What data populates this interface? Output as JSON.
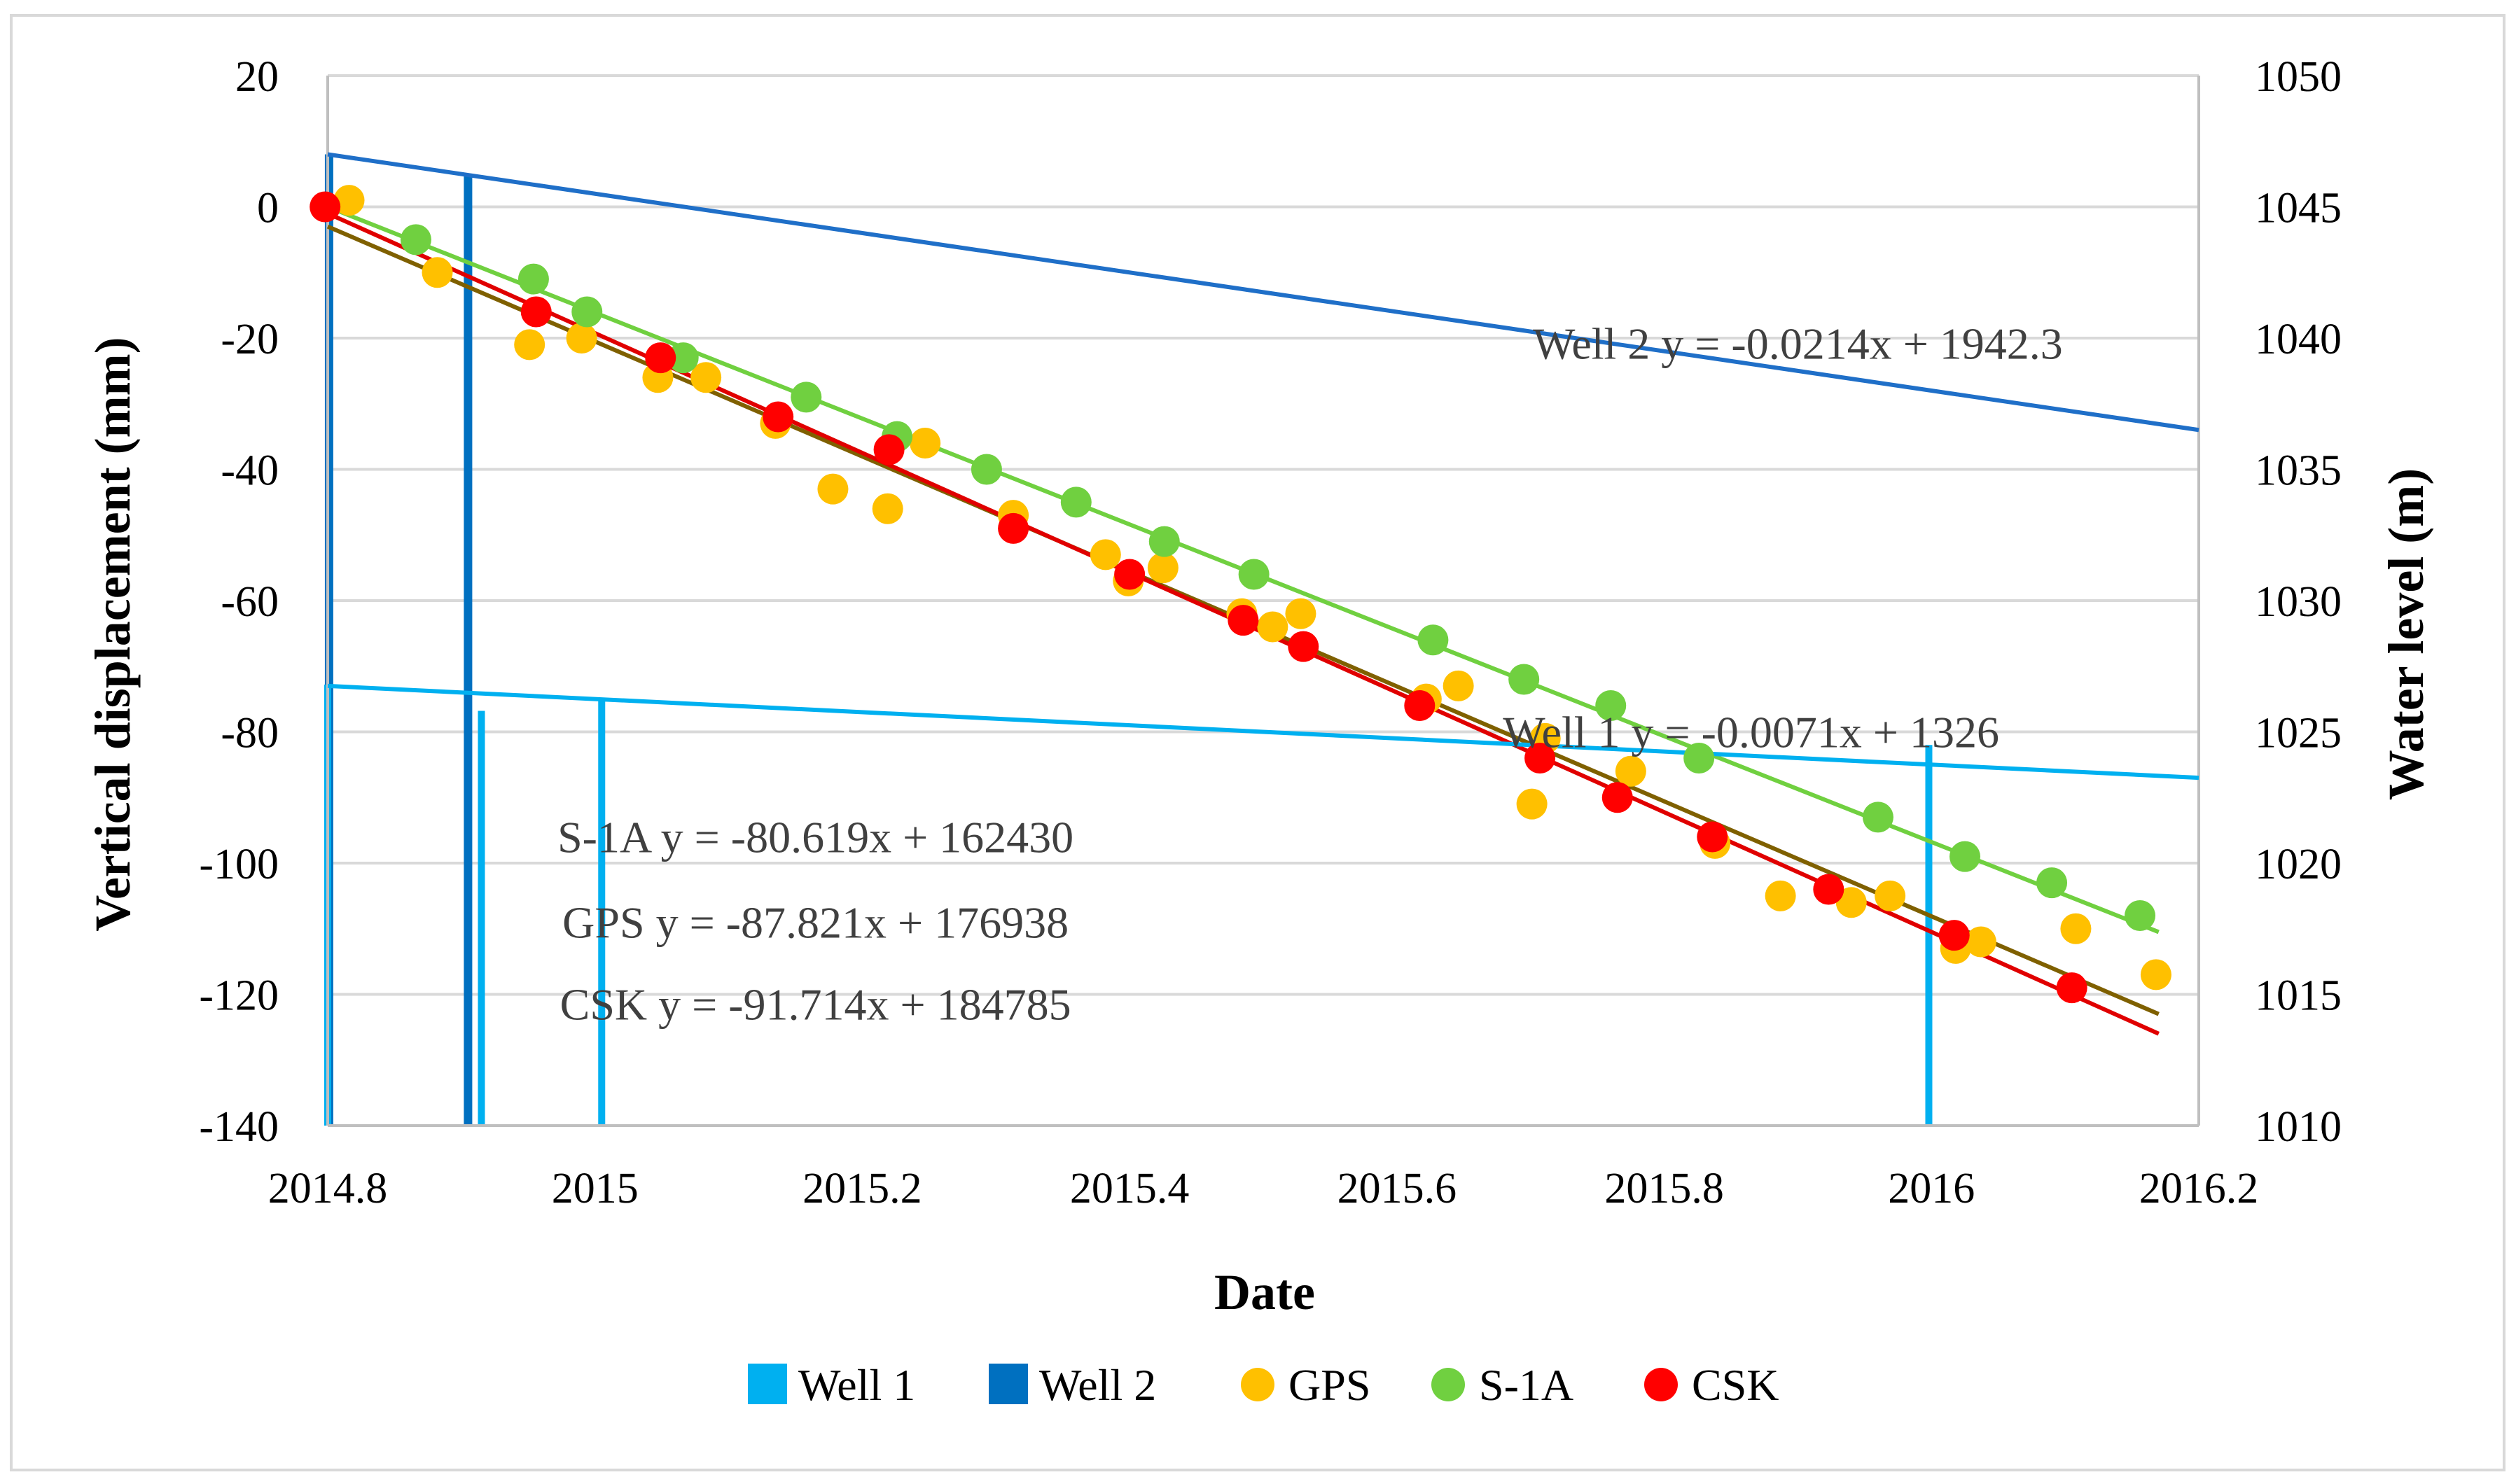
{
  "chart_data": {
    "type": "scatter",
    "title": "",
    "xlabel": "Date",
    "ylabel_left": "Vertical displacement (mm)",
    "ylabel_right": "Water level (m)",
    "xlim": [
      2014.8,
      2016.2
    ],
    "ylim_left": [
      -140,
      20
    ],
    "ylim_right": [
      1010,
      1050
    ],
    "x_ticks": [
      2014.8,
      2015.0,
      2015.2,
      2015.4,
      2015.6,
      2015.8,
      2016.0,
      2016.2
    ],
    "x_tick_labels": [
      "2014.8",
      "2015",
      "2015.2",
      "2015.4",
      "2015.6",
      "2015.8",
      "2016",
      "2016.2"
    ],
    "y_left_ticks": [
      20,
      0,
      -20,
      -40,
      -60,
      -80,
      -100,
      -120,
      -140
    ],
    "y_left_tick_labels": [
      "20",
      "0",
      "-20",
      "-40",
      "-60",
      "-80",
      "-100",
      "-120",
      "-140"
    ],
    "y_right_ticks": [
      1050,
      1045,
      1040,
      1035,
      1030,
      1025,
      1020,
      1015,
      1010
    ],
    "y_right_tick_labels": [
      "1050",
      "1045",
      "1040",
      "1035",
      "1030",
      "1025",
      "1020",
      "1015",
      "1010"
    ],
    "gridlines": true,
    "legend": {
      "position": "bottom",
      "entries": [
        {
          "label": "Well 1",
          "marker": "bar",
          "color": "#00B0F0"
        },
        {
          "label": "Well 2",
          "marker": "bar",
          "color": "#0070C0"
        },
        {
          "label": "GPS",
          "marker": "circle",
          "color": "#FFC000"
        },
        {
          "label": "S-1A",
          "marker": "circle",
          "color": "#70D040"
        },
        {
          "label": "CSK",
          "marker": "circle",
          "color": "#FF0000"
        }
      ]
    },
    "series": [
      {
        "name": "GPS",
        "kind": "scatter",
        "axis": "left",
        "color": "#FFC000",
        "points": [
          [
            2014.816,
            1
          ],
          [
            2014.882,
            -10
          ],
          [
            2014.951,
            -21
          ],
          [
            2014.99,
            -20
          ],
          [
            2015.047,
            -26
          ],
          [
            2015.083,
            -26
          ],
          [
            2015.135,
            -33
          ],
          [
            2015.178,
            -43
          ],
          [
            2015.219,
            -46
          ],
          [
            2015.247,
            -36
          ],
          [
            2015.313,
            -47
          ],
          [
            2015.382,
            -53
          ],
          [
            2015.399,
            -57
          ],
          [
            2015.425,
            -55
          ],
          [
            2015.484,
            -62
          ],
          [
            2015.507,
            -64
          ],
          [
            2015.528,
            -62
          ],
          [
            2015.622,
            -75
          ],
          [
            2015.646,
            -73
          ],
          [
            2015.701,
            -91
          ],
          [
            2015.711,
            -81
          ],
          [
            2015.775,
            -86
          ],
          [
            2015.838,
            -97
          ],
          [
            2015.887,
            -105
          ],
          [
            2015.94,
            -106
          ],
          [
            2015.969,
            -105
          ],
          [
            2016.018,
            -113
          ],
          [
            2016.037,
            -112
          ],
          [
            2016.108,
            -110
          ],
          [
            2016.168,
            -117
          ]
        ]
      },
      {
        "name": "S-1A",
        "kind": "scatter",
        "axis": "left",
        "color": "#70D040",
        "points": [
          [
            2014.866,
            -5
          ],
          [
            2014.954,
            -11
          ],
          [
            2014.994,
            -16
          ],
          [
            2015.066,
            -23
          ],
          [
            2015.158,
            -29
          ],
          [
            2015.226,
            -35
          ],
          [
            2015.293,
            -40
          ],
          [
            2015.36,
            -45
          ],
          [
            2015.426,
            -51
          ],
          [
            2015.493,
            -56
          ],
          [
            2015.627,
            -66
          ],
          [
            2015.695,
            -72
          ],
          [
            2015.76,
            -76
          ],
          [
            2015.826,
            -84
          ],
          [
            2015.96,
            -93
          ],
          [
            2016.025,
            -99
          ],
          [
            2016.09,
            -103
          ],
          [
            2016.156,
            -108
          ]
        ]
      },
      {
        "name": "CSK",
        "kind": "scatter",
        "axis": "left",
        "color": "#FF0000",
        "points": [
          [
            2014.798,
            0
          ],
          [
            2014.956,
            -16
          ],
          [
            2015.049,
            -23
          ],
          [
            2015.137,
            -32
          ],
          [
            2015.22,
            -37
          ],
          [
            2015.313,
            -49
          ],
          [
            2015.4,
            -56
          ],
          [
            2015.485,
            -63
          ],
          [
            2015.53,
            -67
          ],
          [
            2015.617,
            -76
          ],
          [
            2015.707,
            -84
          ],
          [
            2015.765,
            -90
          ],
          [
            2015.836,
            -96
          ],
          [
            2015.923,
            -104
          ],
          [
            2016.017,
            -111
          ],
          [
            2016.105,
            -119
          ]
        ]
      }
    ],
    "trendlines": [
      {
        "name": "S-1A",
        "axis": "left",
        "color": "#70D040",
        "equation": "S-1A y = -80.619x + 162430",
        "x_range": [
          2014.8,
          2016.17
        ],
        "y_range": [
          0,
          -110.5
        ]
      },
      {
        "name": "GPS",
        "axis": "left",
        "color": "#7F6000",
        "equation": "GPS y = -87.821x + 176938",
        "x_range": [
          2014.8,
          2016.17
        ],
        "y_range": [
          -3,
          -123
        ]
      },
      {
        "name": "CSK",
        "axis": "left",
        "color": "#E00000",
        "equation": "CSK y = -91.714x + 184785",
        "x_range": [
          2014.8,
          2016.17
        ],
        "y_range": [
          -1,
          -126
        ]
      },
      {
        "name": "Well 2",
        "axis": "right",
        "color": "#1F6FC8",
        "equation": "Well 2 y = -0.0214x + 1942.3",
        "x_range": [
          2014.8,
          2016.2
        ],
        "y_range": [
          1047,
          1036.5
        ]
      },
      {
        "name": "Well 1",
        "axis": "right",
        "color": "#00B0F0",
        "equation": "Well 1 y = -0.0071x + 1326",
        "x_range": [
          2014.8,
          2016.2
        ],
        "y_range": [
          1026.75,
          1023.25
        ]
      }
    ],
    "well_bars": [
      {
        "name": "Well 2",
        "color": "#0070C0",
        "x": 2014.905,
        "value": 1046.2
      },
      {
        "name": "Well 1",
        "color": "#00B0F0",
        "x": 2014.915,
        "value": 1025.8
      },
      {
        "name": "Well 1",
        "color": "#00B0F0",
        "x": 2015.005,
        "value": 1026.2
      },
      {
        "name": "Well 1",
        "color": "#00B0F0",
        "x": 2015.998,
        "value": 1024.5
      },
      {
        "name": "Well 2",
        "color": "#0070C0",
        "x": 2014.801,
        "value": 1047
      },
      {
        "name": "Well 1",
        "color": "#00B0F0",
        "x": 2014.8,
        "value": 1026.8
      }
    ]
  }
}
